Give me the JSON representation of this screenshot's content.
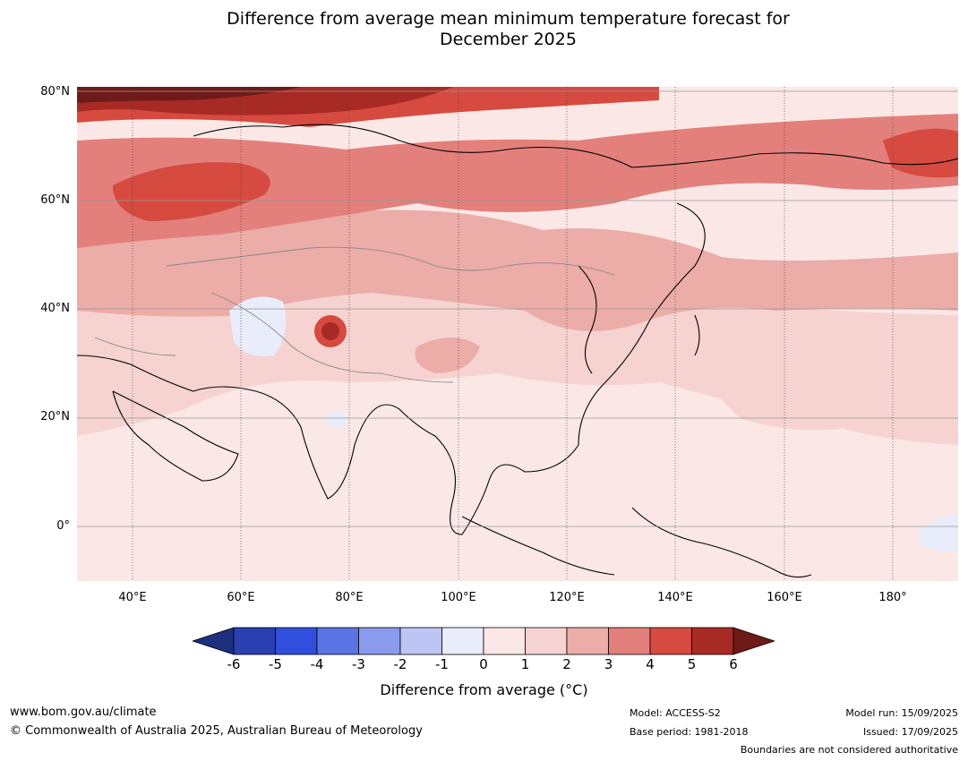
{
  "title_line1": "Difference from average mean minimum temperature forecast for",
  "title_line2": "December 2025",
  "lat_labels": [
    "80°N",
    "60°N",
    "40°N",
    "20°N",
    "0°"
  ],
  "lon_labels": [
    "40°E",
    "60°E",
    "80°E",
    "100°E",
    "120°E",
    "140°E",
    "160°E",
    "180°"
  ],
  "colorbar": {
    "ticks": [
      "-6",
      "-5",
      "-4",
      "-3",
      "-2",
      "-1",
      "0",
      "1",
      "2",
      "3",
      "4",
      "5",
      "6"
    ],
    "colors": [
      "#1f2f7f",
      "#2a3fb0",
      "#2f4fdc",
      "#5b74e4",
      "#8a9aec",
      "#bcc5f4",
      "#e8ecfb",
      "#fbe8e6",
      "#f6d3d0",
      "#ecaca8",
      "#e3807c",
      "#d64a40",
      "#a82a24",
      "#6e1a18"
    ],
    "label": "Difference from average (°C)",
    "label_unit_prefix": "Difference from average (",
    "label_unit": "°C",
    "label_unit_suffix": ")"
  },
  "footer": {
    "website": "www.bom.gov.au/climate",
    "copyright": "© Commonwealth of Australia 2025, Australian Bureau of Meteorology",
    "model": "Model: ACCESS-S2",
    "base_period": "Base period: 1981-2018",
    "model_run": "Model run: 15/09/2025",
    "issued": "Issued: 17/09/2025",
    "disclaimer": "Boundaries are not considered authoritative"
  }
}
